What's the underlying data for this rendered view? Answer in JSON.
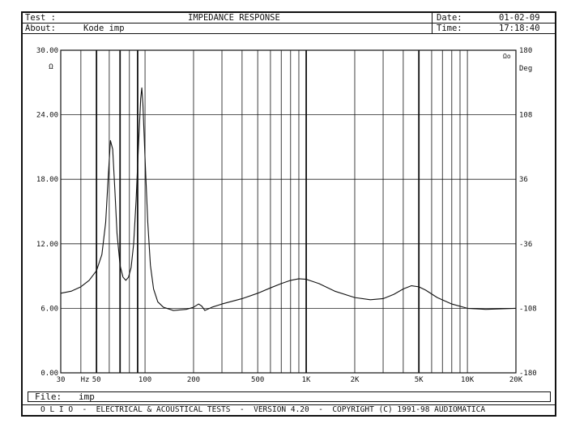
{
  "header": {
    "test_label": "Test :",
    "test_value": "",
    "about_label": "About:",
    "about_value": "Kode imp",
    "title": "IMPEDANCE RESPONSE",
    "date_label": "Date:",
    "date_value": "01-02-09",
    "time_label": "Time:",
    "time_value": "17:18:40"
  },
  "footer": {
    "file_label": "File:",
    "file_value": "imp",
    "banner": "O L I O  -  ELECTRICAL & ACOUSTICAL TESTS  -  VERSION 4.20  -  COPYRIGHT (C) 1991-98 AUDIOMATICA"
  },
  "chart_data": {
    "type": "line",
    "x_scale": "log",
    "xlim": [
      30,
      20000
    ],
    "ylim": [
      0,
      30
    ],
    "y2lim": [
      -180,
      180
    ],
    "ylabel": "Ω",
    "y2label": "Deg",
    "corner_label": "Ωo",
    "y_ticks": [
      {
        "v": 0,
        "label": "0.00"
      },
      {
        "v": 6,
        "label": "6.00"
      },
      {
        "v": 12,
        "label": "12.00"
      },
      {
        "v": 18,
        "label": "18.00"
      },
      {
        "v": 24,
        "label": "24.00"
      },
      {
        "v": 30,
        "label": "30.00"
      }
    ],
    "y2_ticks": [
      {
        "v": -180,
        "label": "-180"
      },
      {
        "v": -108,
        "label": "-108"
      },
      {
        "v": -36,
        "label": "-36"
      },
      {
        "v": 36,
        "label": "36"
      },
      {
        "v": 108,
        "label": "108"
      },
      {
        "v": 180,
        "label": "180"
      }
    ],
    "x_ticks": [
      {
        "v": 30,
        "label": "30"
      },
      {
        "v": 50,
        "label": "50"
      },
      {
        "v": 100,
        "label": "100"
      },
      {
        "v": 200,
        "label": "200"
      },
      {
        "v": 500,
        "label": "500"
      },
      {
        "v": 1000,
        "label": "1K"
      },
      {
        "v": 2000,
        "label": "2K"
      },
      {
        "v": 5000,
        "label": "5K"
      },
      {
        "v": 10000,
        "label": "10K"
      },
      {
        "v": 20000,
        "label": "20K"
      }
    ],
    "x_unit": "Hz",
    "grid_lines": [
      40,
      50,
      60,
      70,
      80,
      90,
      100,
      200,
      300,
      400,
      500,
      600,
      700,
      800,
      900,
      1000,
      2000,
      3000,
      4000,
      5000,
      6000,
      7000,
      8000,
      9000,
      10000,
      20000
    ],
    "bold_grid_lines": [
      50,
      70,
      90,
      1000,
      5000
    ],
    "series": [
      {
        "points": [
          [
            30,
            7.4
          ],
          [
            35,
            7.6
          ],
          [
            40,
            8.0
          ],
          [
            45,
            8.6
          ],
          [
            50,
            9.5
          ],
          [
            54,
            11.0
          ],
          [
            57,
            14.0
          ],
          [
            59,
            18.0
          ],
          [
            61,
            21.6
          ],
          [
            63,
            20.8
          ],
          [
            65,
            17.0
          ],
          [
            67,
            13.0
          ],
          [
            70,
            10.0
          ],
          [
            73,
            8.9
          ],
          [
            76,
            8.6
          ],
          [
            79,
            8.9
          ],
          [
            82,
            9.8
          ],
          [
            85,
            12.0
          ],
          [
            88,
            16.0
          ],
          [
            91,
            21.0
          ],
          [
            94,
            25.5
          ],
          [
            95.5,
            26.5
          ],
          [
            97,
            25.0
          ],
          [
            100,
            20.0
          ],
          [
            104,
            14.0
          ],
          [
            108,
            10.0
          ],
          [
            113,
            7.8
          ],
          [
            120,
            6.6
          ],
          [
            130,
            6.1
          ],
          [
            150,
            5.8
          ],
          [
            180,
            5.9
          ],
          [
            200,
            6.1
          ],
          [
            215,
            6.4
          ],
          [
            225,
            6.2
          ],
          [
            235,
            5.8
          ],
          [
            260,
            6.1
          ],
          [
            300,
            6.4
          ],
          [
            400,
            6.9
          ],
          [
            500,
            7.4
          ],
          [
            600,
            7.9
          ],
          [
            700,
            8.3
          ],
          [
            800,
            8.6
          ],
          [
            900,
            8.75
          ],
          [
            1000,
            8.7
          ],
          [
            1200,
            8.3
          ],
          [
            1500,
            7.6
          ],
          [
            2000,
            7.0
          ],
          [
            2500,
            6.8
          ],
          [
            3000,
            6.9
          ],
          [
            3500,
            7.3
          ],
          [
            4000,
            7.8
          ],
          [
            4500,
            8.1
          ],
          [
            5000,
            8.0
          ],
          [
            5500,
            7.7
          ],
          [
            6500,
            7.0
          ],
          [
            8000,
            6.4
          ],
          [
            10000,
            6.0
          ],
          [
            13000,
            5.9
          ],
          [
            16000,
            5.95
          ],
          [
            20000,
            6.0
          ]
        ]
      }
    ]
  }
}
